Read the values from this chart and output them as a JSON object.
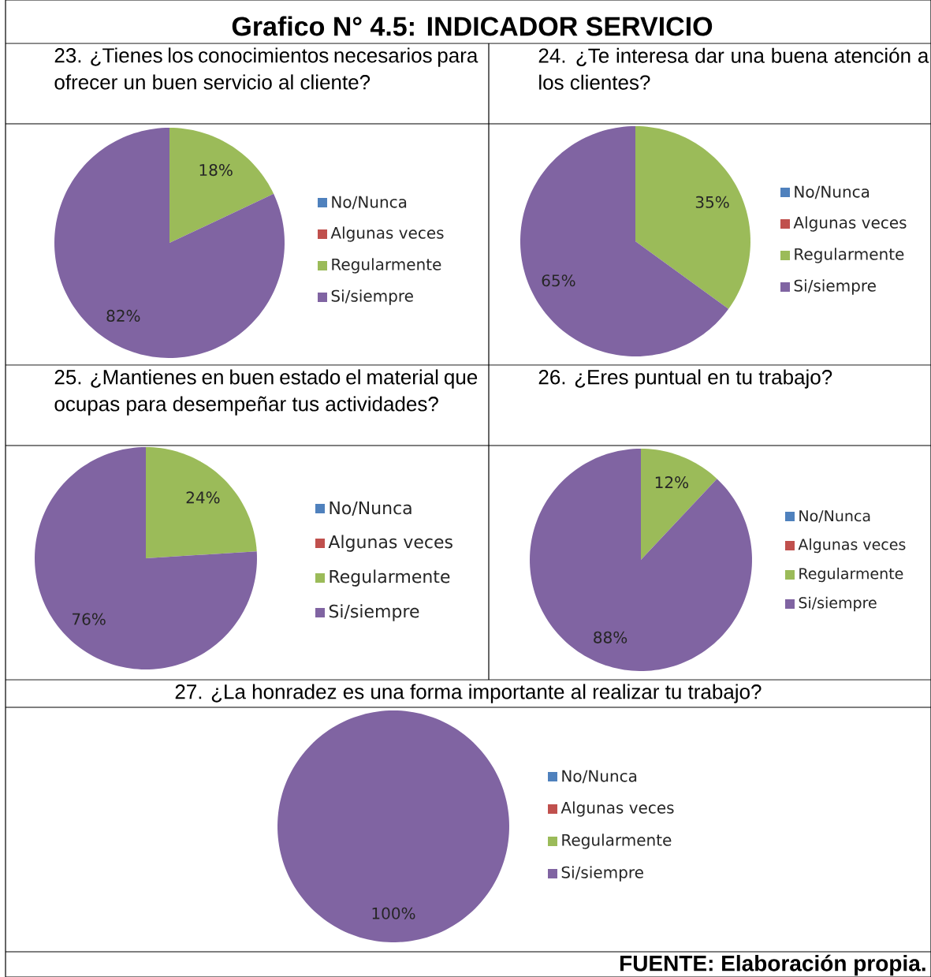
{
  "chart_data": [
    {
      "type": "pie",
      "title": "23. ¿Tienes los conocimientos necesarios para ofrecer un buen servicio al cliente?",
      "categories": [
        "No/Nunca",
        "Algunas veces",
        "Regularmente",
        "Si/siempre"
      ],
      "values": [
        0,
        0,
        18,
        82
      ],
      "colors": [
        "#4f81bd",
        "#c0504d",
        "#9bbb59",
        "#8064a2"
      ],
      "value_labels": [
        null,
        null,
        "18%",
        "82%"
      ],
      "legend": "right"
    },
    {
      "type": "pie",
      "title": "24. ¿Te interesa dar una buena atención a los clientes?",
      "categories": [
        "No/Nunca",
        "Algunas veces",
        "Regularmente",
        "Si/siempre"
      ],
      "values": [
        0,
        0,
        35,
        65
      ],
      "colors": [
        "#4f81bd",
        "#c0504d",
        "#9bbb59",
        "#8064a2"
      ],
      "value_labels": [
        null,
        null,
        "35%",
        "65%"
      ],
      "legend": "right"
    },
    {
      "type": "pie",
      "title": "25. ¿Mantienes en buen estado el material que ocupas para desempeñar tus actividades?",
      "categories": [
        "No/Nunca",
        "Algunas veces",
        "Regularmente",
        "Si/siempre"
      ],
      "values": [
        0,
        0,
        24,
        76
      ],
      "colors": [
        "#4f81bd",
        "#c0504d",
        "#9bbb59",
        "#8064a2"
      ],
      "value_labels": [
        null,
        null,
        "24%",
        "76%"
      ],
      "legend": "right"
    },
    {
      "type": "pie",
      "title": "26. ¿Eres puntual en tu trabajo?",
      "categories": [
        "No/Nunca",
        "Algunas veces",
        "Regularmente",
        "Si/siempre"
      ],
      "values": [
        0,
        0,
        12,
        88
      ],
      "colors": [
        "#4f81bd",
        "#c0504d",
        "#9bbb59",
        "#8064a2"
      ],
      "value_labels": [
        null,
        null,
        "12%",
        "88%"
      ],
      "legend": "right"
    },
    {
      "type": "pie",
      "title": "27. ¿La honradez es una forma importante al realizar tu trabajo?",
      "categories": [
        "No/Nunca",
        "Algunas veces",
        "Regularmente",
        "Si/siempre"
      ],
      "values": [
        0,
        0,
        0,
        100
      ],
      "colors": [
        "#4f81bd",
        "#c0504d",
        "#9bbb59",
        "#8064a2"
      ],
      "value_labels": [
        null,
        null,
        null,
        "100%"
      ],
      "legend": "right"
    },
    {
      "type": "other",
      "title": "Grafico N° 4.5: INDICADOR SERVICIO",
      "annotations": [
        "FUENTE: Elaboración propia."
      ]
    }
  ]
}
